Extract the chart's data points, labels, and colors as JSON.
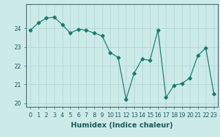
{
  "x": [
    0,
    1,
    2,
    3,
    4,
    5,
    6,
    7,
    8,
    9,
    10,
    11,
    12,
    13,
    14,
    15,
    16,
    17,
    18,
    19,
    20,
    21,
    22,
    23
  ],
  "y": [
    23.9,
    24.3,
    24.55,
    24.6,
    24.2,
    23.75,
    23.95,
    23.9,
    23.75,
    23.6,
    22.7,
    22.45,
    20.2,
    21.6,
    22.35,
    22.3,
    23.9,
    20.3,
    20.95,
    21.05,
    21.35,
    22.55,
    22.95,
    20.5
  ],
  "line_color": "#1a7a6e",
  "marker": "D",
  "marker_size": 2.5,
  "bg_color": "#cceae8",
  "grid_color": "#b0d8d6",
  "xlabel": "Humidex (Indice chaleur)",
  "ylim": [
    19.8,
    25.3
  ],
  "yticks": [
    20,
    21,
    22,
    23,
    24
  ],
  "xtick_labels": [
    "0",
    "1",
    "2",
    "3",
    "4",
    "5",
    "6",
    "7",
    "8",
    "9",
    "10",
    "11",
    "12",
    "13",
    "14",
    "15",
    "16",
    "17",
    "18",
    "19",
    "20",
    "21",
    "22",
    "23"
  ],
  "axis_fontsize": 6.5,
  "tick_fontsize": 6.0,
  "xlabel_fontsize": 7.5
}
